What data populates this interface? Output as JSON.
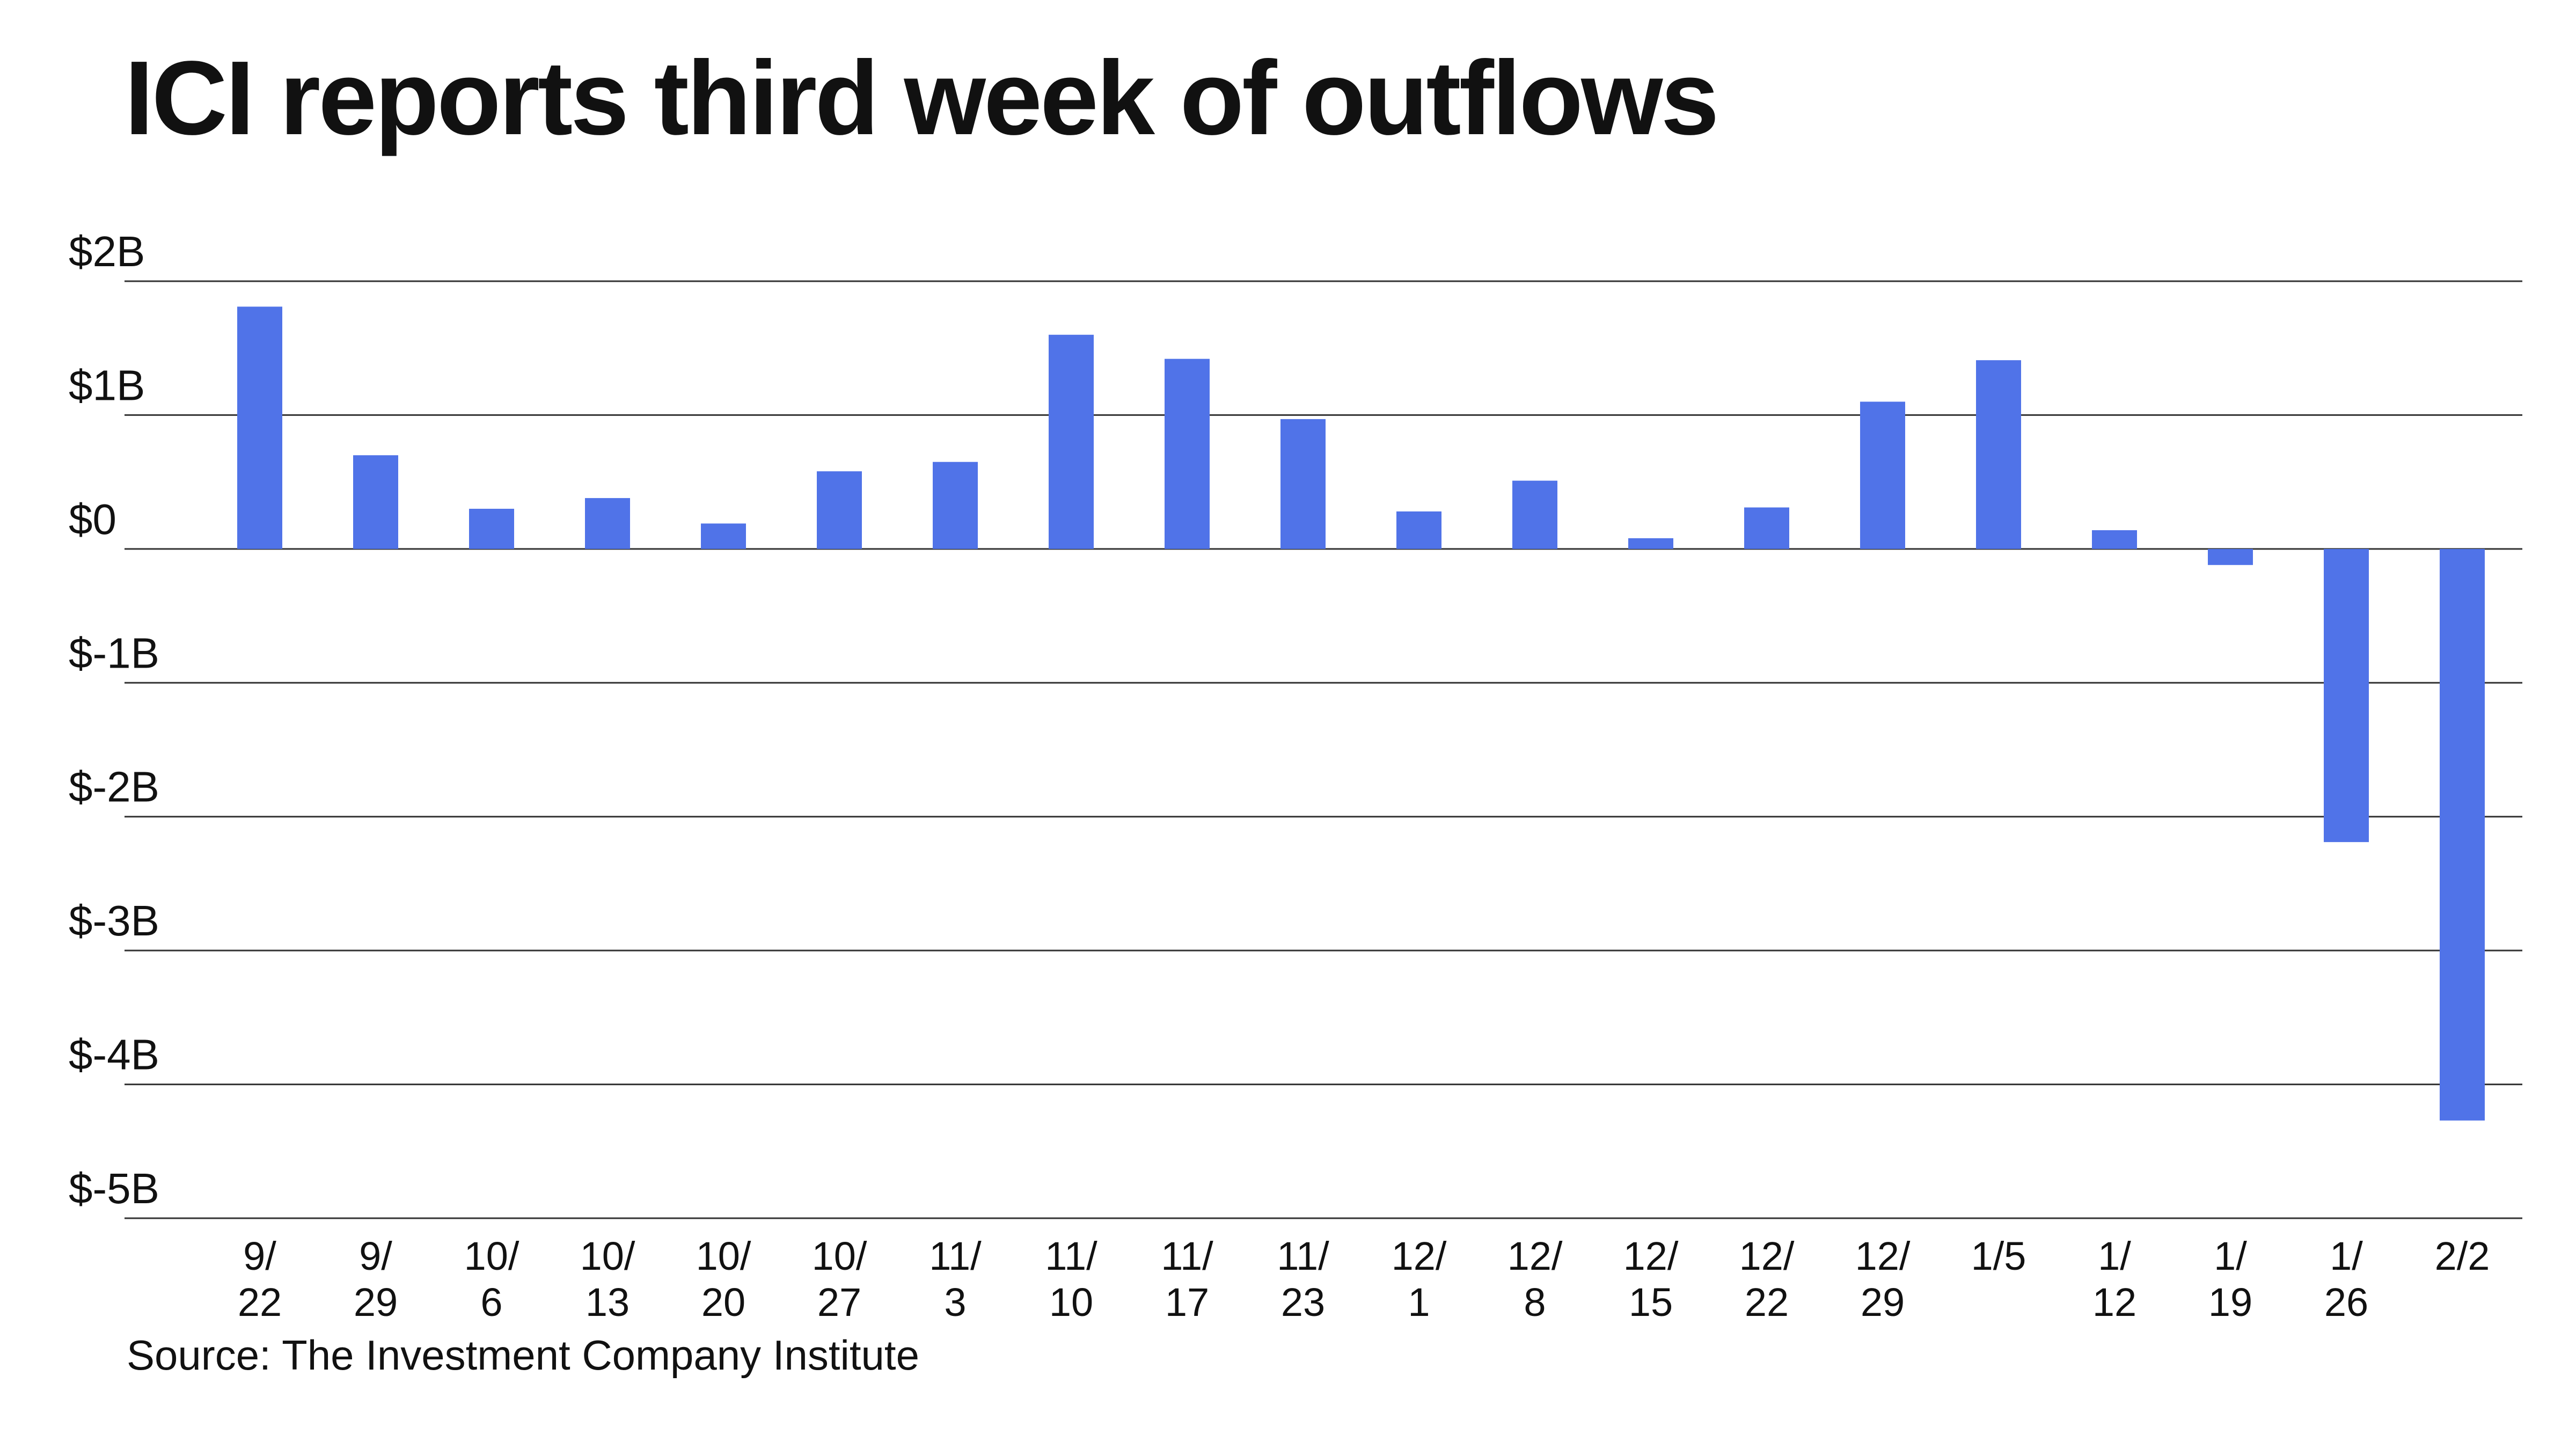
{
  "chart_data": {
    "type": "bar",
    "title": "ICI reports third week of outflows",
    "source": "Source: The Investment Company Institute",
    "bar_color": "#5073E8",
    "grid": true,
    "ylim": [
      -5,
      2
    ],
    "yticks": [
      {
        "value": 2,
        "label": "$2B"
      },
      {
        "value": 1,
        "label": "$1B"
      },
      {
        "value": 0,
        "label": "$0"
      },
      {
        "value": -1,
        "label": "$-1B"
      },
      {
        "value": -2,
        "label": "$-2B"
      },
      {
        "value": -3,
        "label": "$-3B"
      },
      {
        "value": -4,
        "label": "$-4B"
      },
      {
        "value": -5,
        "label": "$-5B"
      }
    ],
    "categories": [
      [
        "9/",
        "22"
      ],
      [
        "9/",
        "29"
      ],
      [
        "10/",
        "6"
      ],
      [
        "10/",
        "13"
      ],
      [
        "10/",
        "20"
      ],
      [
        "10/",
        "27"
      ],
      [
        "11/",
        "3"
      ],
      [
        "11/",
        "10"
      ],
      [
        "11/",
        "17"
      ],
      [
        "11/",
        "23"
      ],
      [
        "12/",
        "1"
      ],
      [
        "12/",
        "8"
      ],
      [
        "12/",
        "15"
      ],
      [
        "12/",
        "22"
      ],
      [
        "12/",
        "29"
      ],
      [
        "1/5",
        ""
      ],
      [
        "1/",
        "12"
      ],
      [
        "1/",
        "19"
      ],
      [
        "1/",
        "26"
      ],
      [
        "2/2",
        ""
      ]
    ],
    "values": [
      1.81,
      0.7,
      0.3,
      0.38,
      0.19,
      0.58,
      0.65,
      1.6,
      1.42,
      0.97,
      0.28,
      0.51,
      0.08,
      0.31,
      1.1,
      1.41,
      0.14,
      -0.12,
      -2.19,
      -4.27
    ]
  }
}
